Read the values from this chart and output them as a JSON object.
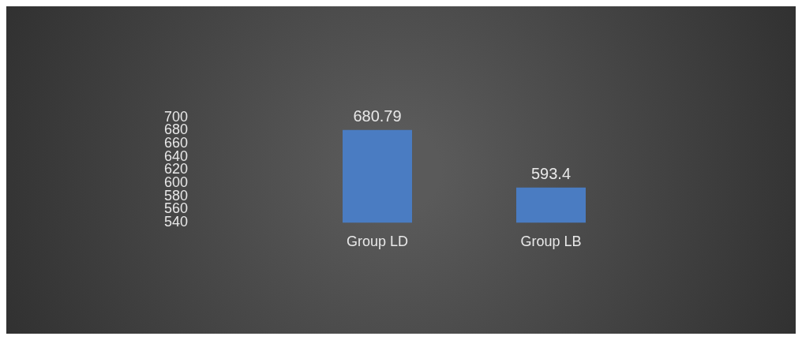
{
  "chart_data": {
    "type": "bar",
    "categories": [
      "Group LD",
      "Group LB"
    ],
    "values": [
      680.79,
      593.4
    ],
    "color": "#4a7cc2",
    "ylim": [
      540,
      700
    ],
    "yticks": [
      540,
      560,
      580,
      600,
      620,
      640,
      660,
      680,
      700
    ],
    "data_labels": true
  }
}
